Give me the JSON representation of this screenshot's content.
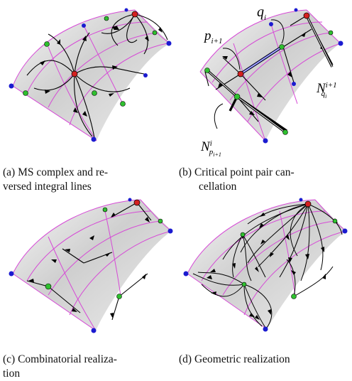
{
  "figure": {
    "panels": [
      {
        "id": "a",
        "caption_line1": "(a)  MS  complex  and  re-",
        "caption_line2": "versed integral lines"
      },
      {
        "id": "b",
        "caption_line1": "(b) Critical point pair can-",
        "caption_line2": "cellation"
      },
      {
        "id": "c",
        "caption_line1": "(c)   Combinatorial   realiza-",
        "caption_line2": "tion"
      },
      {
        "id": "d",
        "caption_line1": "(d) Geometric realization",
        "caption_line2": ""
      }
    ],
    "labels": {
      "q": "q",
      "q_sub": "i",
      "p": "p",
      "p_sub": "i+1",
      "Nq": "N",
      "Nq_sup": "i+1",
      "Nq_sub": "q",
      "Nq_subsub": "i",
      "Np": "N",
      "Np_sup": "i",
      "Np_sub": "p",
      "Np_subsub": "i+1"
    },
    "colors": {
      "mesh": "#d64ad6",
      "maximum": "#d42020",
      "saddle": "#2fc02f",
      "minimum": "#1b1bd0",
      "cancel_path": "#3a3ad8"
    }
  }
}
